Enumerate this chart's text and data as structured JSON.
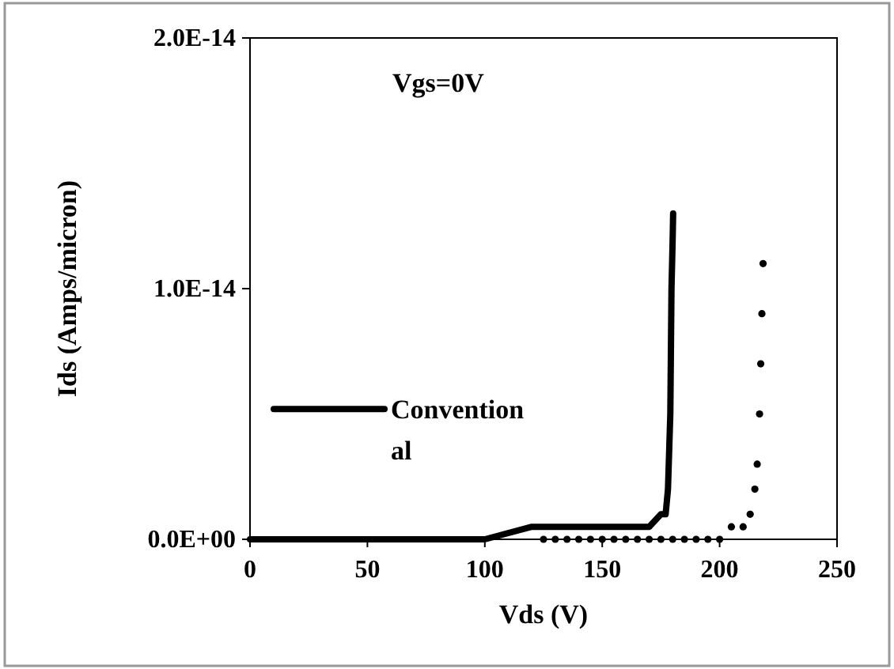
{
  "chart_data": {
    "type": "line",
    "xlabel": "Vds (V)",
    "ylabel": "Ids (Amps/micron)",
    "annotations": [
      "Vgs=0V"
    ],
    "xlim": [
      0,
      250
    ],
    "xticks": [
      0,
      50,
      100,
      150,
      200,
      250
    ],
    "ylim": [
      0,
      2e-14
    ],
    "yticks": [
      {
        "value": 0,
        "label": "0.0E+00"
      },
      {
        "value": 1e-14,
        "label": "1.0E-14"
      },
      {
        "value": 2e-14,
        "label": "2.0E-14"
      }
    ],
    "legend": "left",
    "grid": false,
    "series": [
      {
        "name": "Conventional",
        "color": "#000000",
        "marker": "none",
        "line_style": "solid",
        "x": [
          0,
          100,
          120,
          170,
          175,
          177,
          178,
          179,
          179.5,
          180,
          180.2
        ],
        "values": [
          0,
          0,
          5e-16,
          5e-16,
          1e-15,
          1e-15,
          2e-15,
          5e-15,
          1e-14,
          1.2e-14,
          1.3e-14
        ]
      },
      {
        "color": "#000000",
        "type": "scatter",
        "marker": "circle",
        "x": [
          125,
          130,
          135,
          140,
          145,
          150,
          155,
          160,
          165,
          170,
          175,
          180,
          185,
          190,
          195,
          200,
          205,
          210,
          213,
          215,
          216,
          217,
          217.5,
          218,
          218.5
        ],
        "values": [
          0,
          0,
          0,
          0,
          0,
          0,
          0,
          0,
          0,
          0,
          0,
          0,
          0,
          0,
          0,
          0,
          5e-16,
          5e-16,
          1e-15,
          2e-15,
          3e-15,
          5e-15,
          7e-15,
          9e-15,
          1.1e-14
        ]
      }
    ]
  }
}
